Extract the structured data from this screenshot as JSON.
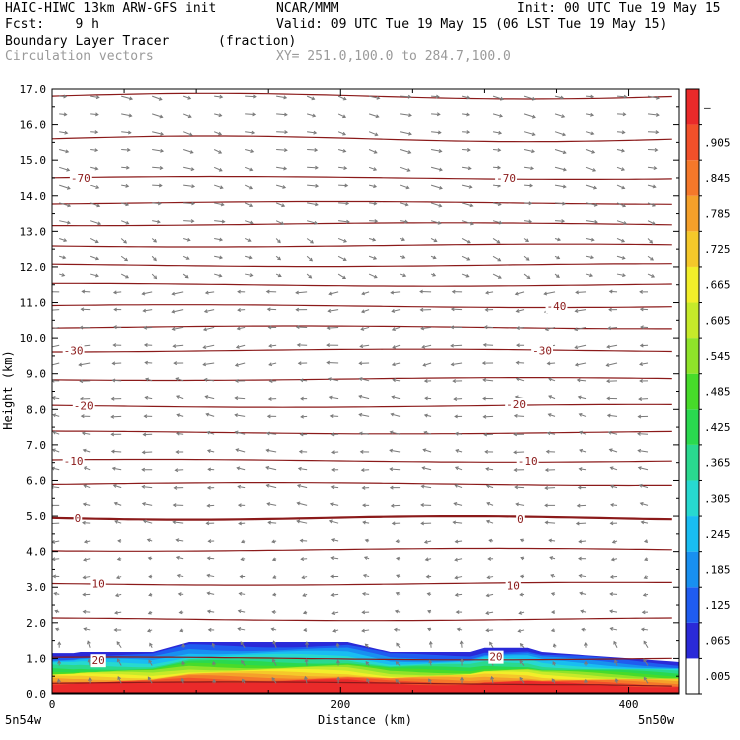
{
  "header": {
    "model_title": "HAIC-HIWC 13km ARW-GFS init",
    "org": "NCAR/MMM",
    "init_time": "Init: 00 UTC Tue 19 May 15",
    "forecast": "Fcst:    9 h",
    "valid_time": "Valid: 09 UTC Tue 19 May 15 (06 LST Tue 19 May 15)",
    "field_name": "Boundary Layer Tracer",
    "field_units": "(fraction)",
    "overlay_name": "Circulation vectors",
    "cross_section": "XY= 251.0,100.0 to 284.7,100.0"
  },
  "chart_data": {
    "type": "heatmap",
    "title": "Boundary Layer Tracer",
    "xlabel": "Distance (km)",
    "ylabel": "Height (km)",
    "xlim": [
      0,
      435
    ],
    "ylim": [
      0,
      17
    ],
    "x_ticks": [
      "0",
      "200",
      "400"
    ],
    "y_ticks": [
      "0.0",
      "1.0",
      "2.0",
      "3.0",
      "4.0",
      "5.0",
      "6.0",
      "7.0",
      "8.0",
      "9.0",
      "10.0",
      "11.0",
      "12.0",
      "13.0",
      "14.0",
      "15.0",
      "16.0",
      "17.0"
    ],
    "x_endpoint_labels": [
      "5n54w",
      "5n50w"
    ],
    "colorbar": {
      "labels": [
        ".005",
        ".065",
        ".125",
        ".185",
        ".245",
        ".305",
        ".365",
        ".425",
        ".485",
        ".545",
        ".605",
        ".665",
        ".725",
        ".785",
        ".845",
        ".905",
        "–"
      ],
      "colors": [
        "#ffffff",
        "#2a2ad8",
        "#1f5cf0",
        "#1890f0",
        "#19bdf2",
        "#27d9d0",
        "#2ad98f",
        "#2ad94f",
        "#47db2a",
        "#8fe32a",
        "#c6ea2a",
        "#f2ee2a",
        "#f5c82a",
        "#f5a02a",
        "#f5782a",
        "#f2502a",
        "#ea2a2a"
      ]
    },
    "contour_labels": [
      {
        "label": "-70",
        "x": 20,
        "y": 14.5
      },
      {
        "label": "-70",
        "x": 315,
        "y": 14.5
      },
      {
        "label": "-40",
        "x": 350,
        "y": 10.9
      },
      {
        "label": "-30",
        "x": 15,
        "y": 9.65
      },
      {
        "label": "-30",
        "x": 340,
        "y": 9.65
      },
      {
        "label": "-20",
        "x": 22,
        "y": 8.1
      },
      {
        "label": "-20",
        "x": 322,
        "y": 8.15
      },
      {
        "label": "-10",
        "x": 15,
        "y": 6.55
      },
      {
        "label": "-10",
        "x": 330,
        "y": 6.55
      },
      {
        "label": "0",
        "x": 18,
        "y": 4.95
      },
      {
        "label": "0",
        "x": 325,
        "y": 4.92
      },
      {
        "label": "10",
        "x": 32,
        "y": 3.1
      },
      {
        "label": "10",
        "x": 320,
        "y": 3.05
      },
      {
        "label": "20",
        "x": 32,
        "y": 0.95
      },
      {
        "label": "20",
        "x": 308,
        "y": 1.05
      }
    ]
  },
  "colors": {
    "contour": "#8b1a1a",
    "vector": "#7a7a7a",
    "label_red": "#8b1a1a"
  }
}
